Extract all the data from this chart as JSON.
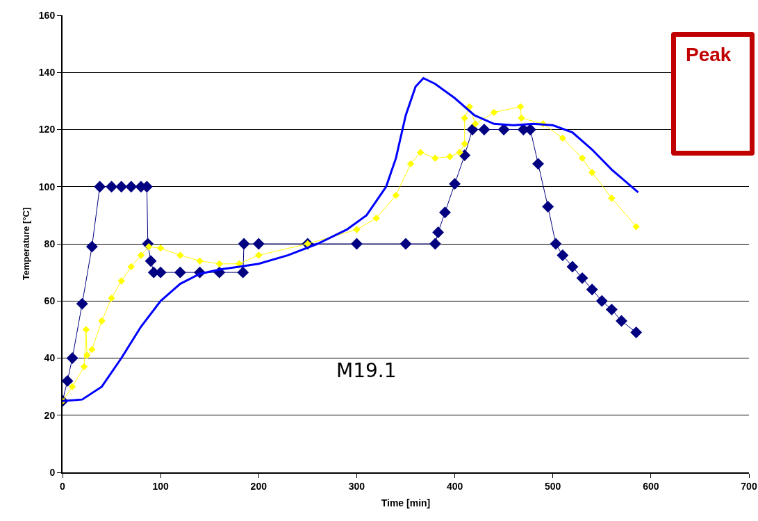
{
  "chart_data": {
    "type": "line",
    "xlabel": "Time [min]",
    "ylabel": "Temperature [°C]",
    "xlim": [
      0,
      700
    ],
    "xticks": [
      0,
      100,
      200,
      300,
      400,
      500,
      600,
      700
    ],
    "ylim": [
      0,
      160
    ],
    "yticks": [
      0,
      20,
      40,
      60,
      80,
      100,
      120,
      140,
      160
    ],
    "grid": "y",
    "line_style": "solid",
    "annotations": [
      "M19.1",
      "Peak"
    ],
    "series": [
      {
        "color": "#000080",
        "marker": "diamond",
        "x": [
          0,
          5,
          10,
          20,
          30,
          38,
          50,
          60,
          70,
          80,
          86,
          87,
          90,
          93,
          100,
          120,
          140,
          160,
          184,
          185,
          200,
          250,
          300,
          350,
          380,
          383,
          390,
          400,
          410,
          418,
          430,
          450,
          470,
          477,
          485,
          495,
          503,
          510,
          520,
          530,
          540,
          550,
          560,
          570,
          585
        ],
        "values": [
          25,
          32,
          40,
          59,
          79,
          100,
          100,
          100,
          100,
          100,
          100,
          80,
          74,
          70,
          70,
          70,
          70,
          70,
          70,
          80,
          80,
          80,
          80,
          80,
          80,
          84,
          91,
          101,
          111,
          120,
          120,
          120,
          120,
          120,
          108,
          93,
          80,
          76,
          72,
          68,
          64,
          60,
          57,
          53,
          49
        ]
      },
      {
        "color": "#ffff00",
        "marker": "diamond",
        "x": [
          0,
          10,
          22,
          24,
          25,
          30,
          40,
          50,
          60,
          70,
          80,
          88,
          100,
          120,
          140,
          160,
          180,
          200,
          250,
          300,
          320,
          340,
          355,
          365,
          380,
          395,
          405,
          410,
          410,
          415,
          421,
          440,
          467,
          468,
          490,
          510,
          530,
          540,
          560,
          585
        ],
        "values": [
          25,
          30,
          37,
          50,
          41,
          43,
          53,
          61,
          67,
          72,
          76,
          79,
          78.5,
          76,
          74,
          73,
          73,
          76,
          80,
          85,
          89,
          97,
          108,
          112,
          110,
          110.5,
          112,
          115,
          124,
          128,
          122,
          126,
          128,
          124,
          122,
          117,
          110,
          105,
          96,
          86
        ]
      },
      {
        "color": "#0000ff",
        "marker": "none",
        "x": [
          0,
          20,
          40,
          60,
          80,
          100,
          120,
          140,
          160,
          180,
          200,
          230,
          260,
          290,
          310,
          330,
          340,
          350,
          360,
          368,
          380,
          400,
          420,
          440,
          460,
          480,
          500,
          520,
          540,
          560,
          587
        ],
        "values": [
          25,
          25.5,
          30,
          40,
          51,
          60,
          66,
          69.5,
          71,
          72,
          73,
          76,
          80,
          85,
          90,
          100,
          110,
          125,
          135,
          138,
          136,
          131,
          125,
          122,
          121.5,
          122,
          121.5,
          119,
          113,
          106,
          98
        ]
      }
    ]
  }
}
